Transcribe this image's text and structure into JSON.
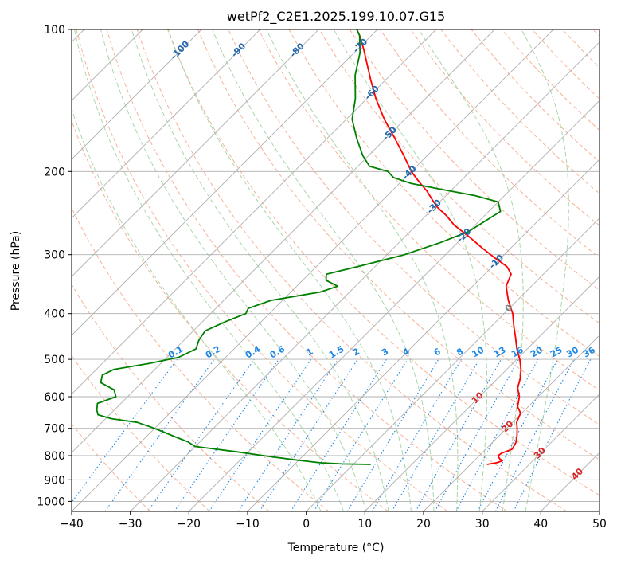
{
  "chart_data": {
    "type": "skew-t",
    "title": "wetPf2_C2E1.2025.199.10.07.G15",
    "xlabel": "Temperature (°C)",
    "ylabel": "Pressure (hPa)",
    "xlim": [
      -40,
      50
    ],
    "ylim_hPa": [
      1050,
      100
    ],
    "y_scale": "log",
    "grid": true,
    "x_ticks": [
      -40,
      -30,
      -20,
      -10,
      0,
      10,
      20,
      30,
      40,
      50
    ],
    "x_tick_labels": [
      "−40",
      "−30",
      "−20",
      "−10",
      "0",
      "10",
      "20",
      "30",
      "40",
      "50"
    ],
    "y_ticks": [
      100,
      200,
      300,
      400,
      500,
      600,
      700,
      800,
      900,
      1000
    ],
    "y_tick_labels": [
      "100",
      "200",
      "300",
      "400",
      "500",
      "600",
      "700",
      "800",
      "900",
      "1000"
    ],
    "colors": {
      "temperature": "#ff0000",
      "dewpoint": "#008000",
      "isotherm_grid": "#b0b0b0",
      "dry_adiabat": "#f4a582",
      "moist_adiabat": "#9fd39f",
      "mixing_ratio": "#1f88e5",
      "isotherm_label": "#2166ac",
      "adiabat_label": "#d62728",
      "zero_label": "#808080"
    },
    "series": [
      {
        "name": "temperature",
        "pressure": [
          835,
          828,
          820,
          812,
          800,
          790,
          775,
          750,
          725,
          700,
          680,
          650,
          630,
          600,
          575,
          550,
          525,
          500,
          475,
          450,
          425,
          400,
          375,
          350,
          330,
          318,
          305,
          290,
          275,
          260,
          248,
          238,
          230,
          220,
          210,
          200,
          185,
          170,
          155,
          140,
          128,
          118,
          110,
          103,
          100
        ],
        "temp_c": [
          22.8,
          24.2,
          24.8,
          24.0,
          23.2,
          23.4,
          24.5,
          24.0,
          23.0,
          21.8,
          20.7,
          19.8,
          18.2,
          16.8,
          15.0,
          13.9,
          12.4,
          10.5,
          8.2,
          6.1,
          3.8,
          1.5,
          -1.5,
          -4.3,
          -5.5,
          -7.5,
          -11.0,
          -15.0,
          -19.0,
          -23.5,
          -26.5,
          -29.5,
          -31.5,
          -34.0,
          -37.0,
          -40.0,
          -44.0,
          -48.5,
          -53.5,
          -58.5,
          -62.5,
          -66.0,
          -69.0,
          -72.0,
          -73.5
        ]
      },
      {
        "name": "dewpoint",
        "pressure": [
          835,
          833,
          828,
          818,
          805,
          785,
          765,
          748,
          730,
          712,
          695,
          680,
          668,
          655,
          640,
          620,
          600,
          580,
          560,
          540,
          525,
          510,
          495,
          475,
          455,
          435,
          415,
          400,
          390,
          375,
          360,
          350,
          340,
          330,
          318,
          300,
          283,
          268,
          255,
          243,
          232,
          225,
          218,
          212,
          206,
          200,
          195,
          185,
          170,
          155,
          140,
          125,
          112,
          103,
          100
        ],
        "temp_c": [
          3.0,
          -2.0,
          -6.0,
          -10.0,
          -15.0,
          -22.0,
          -30.0,
          -32.0,
          -35.0,
          -38.0,
          -41.0,
          -44.0,
          -49.0,
          -52.0,
          -53.0,
          -54.0,
          -52.0,
          -53.5,
          -57.0,
          -58.0,
          -57.0,
          -52.0,
          -48.0,
          -46.5,
          -47.5,
          -48.0,
          -46.0,
          -44.0,
          -44.5,
          -42.0,
          -35.0,
          -33.0,
          -36.0,
          -37.0,
          -33.0,
          -27.0,
          -23.0,
          -20.0,
          -19.0,
          -18.0,
          -20.0,
          -25.0,
          -32.0,
          -38.0,
          -42.0,
          -44.0,
          -48.0,
          -51.0,
          -55.0,
          -59.0,
          -62.0,
          -66.0,
          -69.0,
          -72.0,
          -73.5
        ]
      }
    ],
    "isotherm_labels": [
      "-100",
      "-90",
      "-80",
      "-70",
      "-60",
      "-50",
      "-40",
      "-30",
      "-20",
      "-10",
      "0"
    ],
    "isotherm_label_values": [
      -100,
      -90,
      -80,
      -70,
      -60,
      -50,
      -40,
      -30,
      -20,
      -10,
      0
    ],
    "adiabat_labels": [
      "10",
      "20",
      "30",
      "40"
    ],
    "adiabat_label_values": [
      10,
      20,
      30,
      40
    ],
    "mixing_ratio_labels": [
      "0.1",
      "0.2",
      "0.4",
      "0.6",
      "1",
      "1.5",
      "2",
      "3",
      "4",
      "6",
      "8",
      "10",
      "13",
      "16",
      "20",
      "25",
      "30",
      "36"
    ],
    "mixing_ratio_values": [
      0.1,
      0.2,
      0.4,
      0.6,
      1,
      1.5,
      2,
      3,
      4,
      6,
      8,
      10,
      13,
      16,
      20,
      25,
      30,
      36
    ]
  }
}
